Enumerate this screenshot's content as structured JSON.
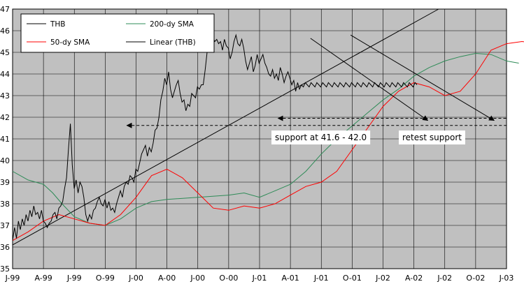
{
  "chart_data": {
    "type": "line",
    "title": "",
    "xlabel": "",
    "ylabel": "",
    "ylim": [
      35,
      47
    ],
    "y_ticks": [
      "35",
      "36",
      "37",
      "38",
      "39",
      "40",
      "41",
      "42",
      "43",
      "44",
      "45",
      "46",
      "47"
    ],
    "x_ticks": [
      "J-99",
      "A-99",
      "J-99",
      "O-99",
      "J-00",
      "A-00",
      "J-00",
      "O-00",
      "J-01",
      "A-01",
      "J-01",
      "O-01",
      "J-02",
      "A-02",
      "J-02",
      "O-02",
      "J-03"
    ],
    "x_range": [
      "1999-01",
      "2003-07"
    ],
    "grid": true,
    "plot_background": "#c0c0c0",
    "legend": {
      "placement": "top-left",
      "entries": [
        {
          "label": "THB",
          "color": "#000000"
        },
        {
          "label": "200-dy SMA",
          "color": "#2e8b57"
        },
        {
          "label": "50-dy SMA",
          "color": "#ff0000"
        },
        {
          "label": "Linear (THB)",
          "color": "#000000"
        }
      ]
    },
    "series": [
      {
        "name": "THB",
        "color": "#000000",
        "x": [
          0,
          0.1,
          0.2,
          0.3,
          0.4,
          0.5,
          0.6,
          0.7,
          0.8,
          0.9,
          1.0,
          1.1,
          1.2,
          1.4,
          1.6,
          1.8,
          2.0,
          2.2,
          2.4,
          2.6,
          2.8,
          2.9,
          3.0,
          3.1,
          3.2,
          3.35,
          3.5,
          3.6,
          3.8,
          4.0,
          4.2,
          4.4,
          4.6,
          4.8,
          5.0,
          5.2,
          5.4,
          5.6,
          5.8,
          6.0,
          6.2,
          6.4,
          6.6,
          6.8,
          7.0,
          7.2,
          7.4,
          7.6,
          7.8,
          8.0,
          8.2,
          8.4,
          8.6,
          8.8,
          9.0,
          9.2,
          9.4,
          9.6,
          9.8,
          10.0,
          10.2,
          10.4,
          10.6,
          10.8,
          11.0,
          11.2,
          11.4,
          11.6,
          11.8,
          12.0,
          12.2,
          12.4,
          12.6,
          12.8,
          13.0,
          13.2,
          13.4,
          13.6,
          13.8,
          14.0,
          14.2,
          14.4,
          14.6,
          14.8,
          15.0,
          15.2,
          15.4,
          15.6,
          15.8,
          16.0,
          16.2,
          16.4,
          16.6,
          16.8,
          17.0,
          17.2,
          17.4,
          17.6,
          17.8,
          18.0,
          18.2,
          18.4,
          18.6,
          18.8,
          19.0,
          19.2,
          19.4,
          19.6,
          19.8,
          20.0,
          20.2,
          20.4,
          20.6,
          20.8,
          21.0,
          21.2,
          21.4,
          21.6,
          21.8,
          22.0,
          22.2,
          22.4,
          22.6,
          22.8,
          23.0,
          23.2,
          23.4,
          23.6,
          23.8,
          24.0,
          24.2,
          24.4,
          24.6,
          24.8,
          25.0,
          25.2,
          25.4,
          25.6,
          25.8,
          26.0,
          26.2,
          26.4,
          26.6,
          26.8,
          27.0,
          27.2,
          27.4,
          27.6,
          27.8,
          28.0,
          28.2,
          28.4,
          28.6,
          28.8,
          29.0,
          29.2,
          29.4,
          29.6,
          29.8,
          30.0,
          30.2,
          30.4,
          30.6,
          30.8,
          31.0,
          31.2,
          31.4,
          31.6,
          31.8,
          32.0,
          32.2,
          32.4,
          32.6,
          32.8,
          33.0,
          33.2,
          33.4,
          33.6,
          33.8,
          34.0,
          34.2,
          34.4,
          34.6,
          34.8,
          35.0,
          35.2,
          35.4,
          35.6,
          35.8,
          36.0,
          36.2,
          36.4,
          36.6,
          36.8,
          37.0,
          37.2,
          37.4,
          37.6,
          37.8,
          38.0,
          38.2,
          38.4,
          38.6,
          38.8,
          39.0,
          39.2,
          39.4,
          39.6,
          39.8,
          40.0,
          40.2
        ],
        "values": [
          36.3,
          36.9,
          36.4,
          37.2,
          36.8,
          37.3,
          37.0,
          37.5,
          37.2,
          37.7,
          37.4,
          37.9,
          37.5,
          37.6,
          37.3,
          37.7,
          37.2,
          37.1,
          36.9,
          37.1,
          37.2,
          37.5,
          37.6,
          37.3,
          37.8,
          37.9,
          38.1,
          38.7,
          39.2,
          40.5,
          41.7,
          39.8,
          38.7,
          39.1,
          38.5,
          39.0,
          38.8,
          38.3,
          37.5,
          37.2,
          37.5,
          37.3,
          37.7,
          37.8,
          38.1,
          38.3,
          38.0,
          37.9,
          38.2,
          37.8,
          38.1,
          37.7,
          37.8,
          37.6,
          38.0,
          38.3,
          38.6,
          38.3,
          38.8,
          39.0,
          38.9,
          39.3,
          39.2,
          39.0,
          39.6,
          39.5,
          39.9,
          40.3,
          40.5,
          40.7,
          40.2,
          40.6,
          40.4,
          40.8,
          41.4,
          41.5,
          42.0,
          42.8,
          43.2,
          43.8,
          43.5,
          44.1,
          43.3,
          42.9,
          43.2,
          43.5,
          43.7,
          43.1,
          42.7,
          42.8,
          42.3,
          42.6,
          42.5,
          43.1,
          43.0,
          42.9,
          43.4,
          43.3,
          43.5,
          43.5,
          44.2,
          45.0,
          45.6,
          45.3,
          45.7,
          45.5,
          45.6,
          45.4,
          45.5,
          45.1,
          45.6,
          45.3,
          45.2,
          44.7,
          45.0,
          45.5,
          45.8,
          45.4,
          45.3,
          45.6,
          45.2,
          44.6,
          44.2,
          44.5,
          44.8,
          44.1,
          44.4,
          44.9,
          44.5,
          44.7,
          44.9,
          44.5,
          44.3,
          44.0,
          43.9,
          44.2,
          43.8,
          44.0,
          43.7,
          44.3,
          44.0,
          43.6,
          43.9,
          44.1,
          43.8,
          43.5,
          43.7,
          43.2,
          43.6,
          43.3,
          43.5,
          43.4,
          43.6,
          43.5,
          43.4,
          43.6,
          43.5,
          43.4,
          43.6,
          43.5,
          43.4,
          43.6,
          43.5,
          43.4,
          43.6,
          43.5,
          43.4,
          43.6,
          43.5,
          43.4,
          43.6,
          43.5,
          43.4,
          43.6,
          43.5,
          43.4,
          43.6,
          43.5,
          43.4,
          43.6,
          43.5,
          43.4,
          43.6,
          43.5,
          43.4,
          43.6,
          43.5,
          43.4,
          43.6,
          43.5,
          43.4,
          43.6,
          43.5,
          43.4,
          43.6,
          43.5,
          43.4,
          43.6,
          43.5,
          43.4,
          43.6,
          43.5,
          43.4,
          43.6,
          43.5,
          43.4,
          43.6,
          43.5,
          43.4,
          43.6,
          43.5
        ]
      }
    ]
  }
}
